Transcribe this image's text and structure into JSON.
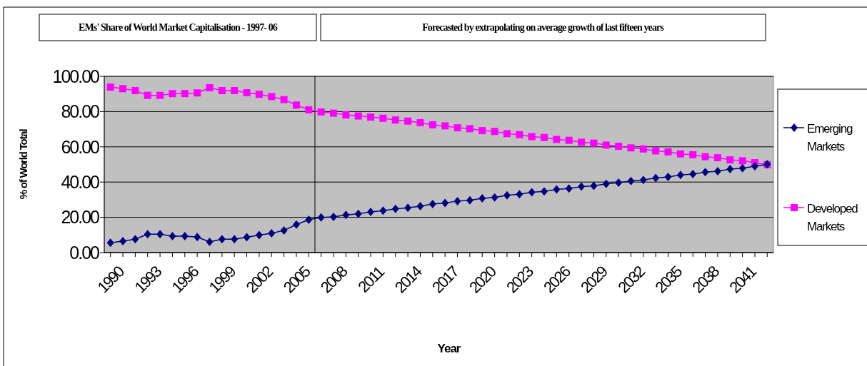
{
  "chart_data": {
    "type": "line",
    "title": "EMs' Share of World Market Capitalisation - 1997- 06",
    "subtitle": "Forecasted by extrapolating on average growth of last fifteen years",
    "xlabel": "Year",
    "ylabel": "% of World Total",
    "x": [
      1990,
      1991,
      1992,
      1993,
      1994,
      1995,
      1996,
      1997,
      1998,
      1999,
      2000,
      2001,
      2002,
      2003,
      2004,
      2005,
      2006,
      2007,
      2008,
      2009,
      2010,
      2011,
      2012,
      2013,
      2014,
      2015,
      2016,
      2017,
      2018,
      2019,
      2020,
      2021,
      2022,
      2023,
      2024,
      2025,
      2026,
      2027,
      2028,
      2029,
      2030,
      2031,
      2032,
      2033,
      2034,
      2035,
      2036,
      2037,
      2038,
      2039,
      2040,
      2041,
      2042,
      2043
    ],
    "series": [
      {
        "name": "Emerging Markets",
        "color": "#000080",
        "marker": "diamond",
        "values": [
          5.6,
          6.5,
          7.6,
          10.4,
          10.4,
          9.3,
          9.3,
          8.8,
          6.1,
          7.6,
          7.6,
          8.7,
          9.9,
          10.9,
          12.6,
          15.9,
          18.6,
          19.9,
          20.2,
          21.4,
          22.0,
          23.1,
          23.8,
          24.8,
          25.4,
          26.3,
          27.5,
          28.1,
          29.2,
          29.7,
          30.8,
          31.3,
          32.5,
          33.1,
          34.2,
          34.7,
          35.8,
          36.3,
          37.4,
          37.9,
          39.0,
          39.7,
          40.6,
          41.2,
          42.3,
          42.9,
          44.0,
          44.5,
          45.6,
          46.2,
          47.4,
          47.9,
          49.0,
          50.1
        ]
      },
      {
        "name": "Developed Markets",
        "color": "#ff00ff",
        "marker": "square",
        "values": [
          93.9,
          93.0,
          91.9,
          89.2,
          89.2,
          90.2,
          90.2,
          90.6,
          93.5,
          91.9,
          91.9,
          90.7,
          89.8,
          88.5,
          86.8,
          83.7,
          81.0,
          79.8,
          79.1,
          78.1,
          77.5,
          76.9,
          76.2,
          75.2,
          74.6,
          73.7,
          72.5,
          71.9,
          70.8,
          70.3,
          69.2,
          68.7,
          67.5,
          66.9,
          65.8,
          65.3,
          64.2,
          63.7,
          62.6,
          62.1,
          61.0,
          60.3,
          59.4,
          58.8,
          57.7,
          57.1,
          56.0,
          55.5,
          54.4,
          53.8,
          52.6,
          52.1,
          51.0,
          49.9
        ]
      }
    ],
    "xlim": [
      1989.5,
      2043.5
    ],
    "xticks": [
      1990,
      1993,
      1996,
      1999,
      2002,
      2005,
      2008,
      2011,
      2014,
      2017,
      2020,
      2023,
      2026,
      2029,
      2032,
      2035,
      2038,
      2041
    ],
    "ylim": [
      0,
      100
    ],
    "yticks": [
      {
        "value": 0,
        "label": "0.00"
      },
      {
        "value": 20,
        "label": "20.00"
      },
      {
        "value": 40,
        "label": "40.00"
      },
      {
        "value": 60,
        "label": "60.00"
      },
      {
        "value": 80,
        "label": "80.00"
      },
      {
        "value": 100,
        "label": "100.00"
      }
    ],
    "grid": "y",
    "legend": "right",
    "line_style": "solid",
    "ref_lines": [
      {
        "axis": "x",
        "value": 2006.5,
        "color": "#000000"
      }
    ]
  }
}
